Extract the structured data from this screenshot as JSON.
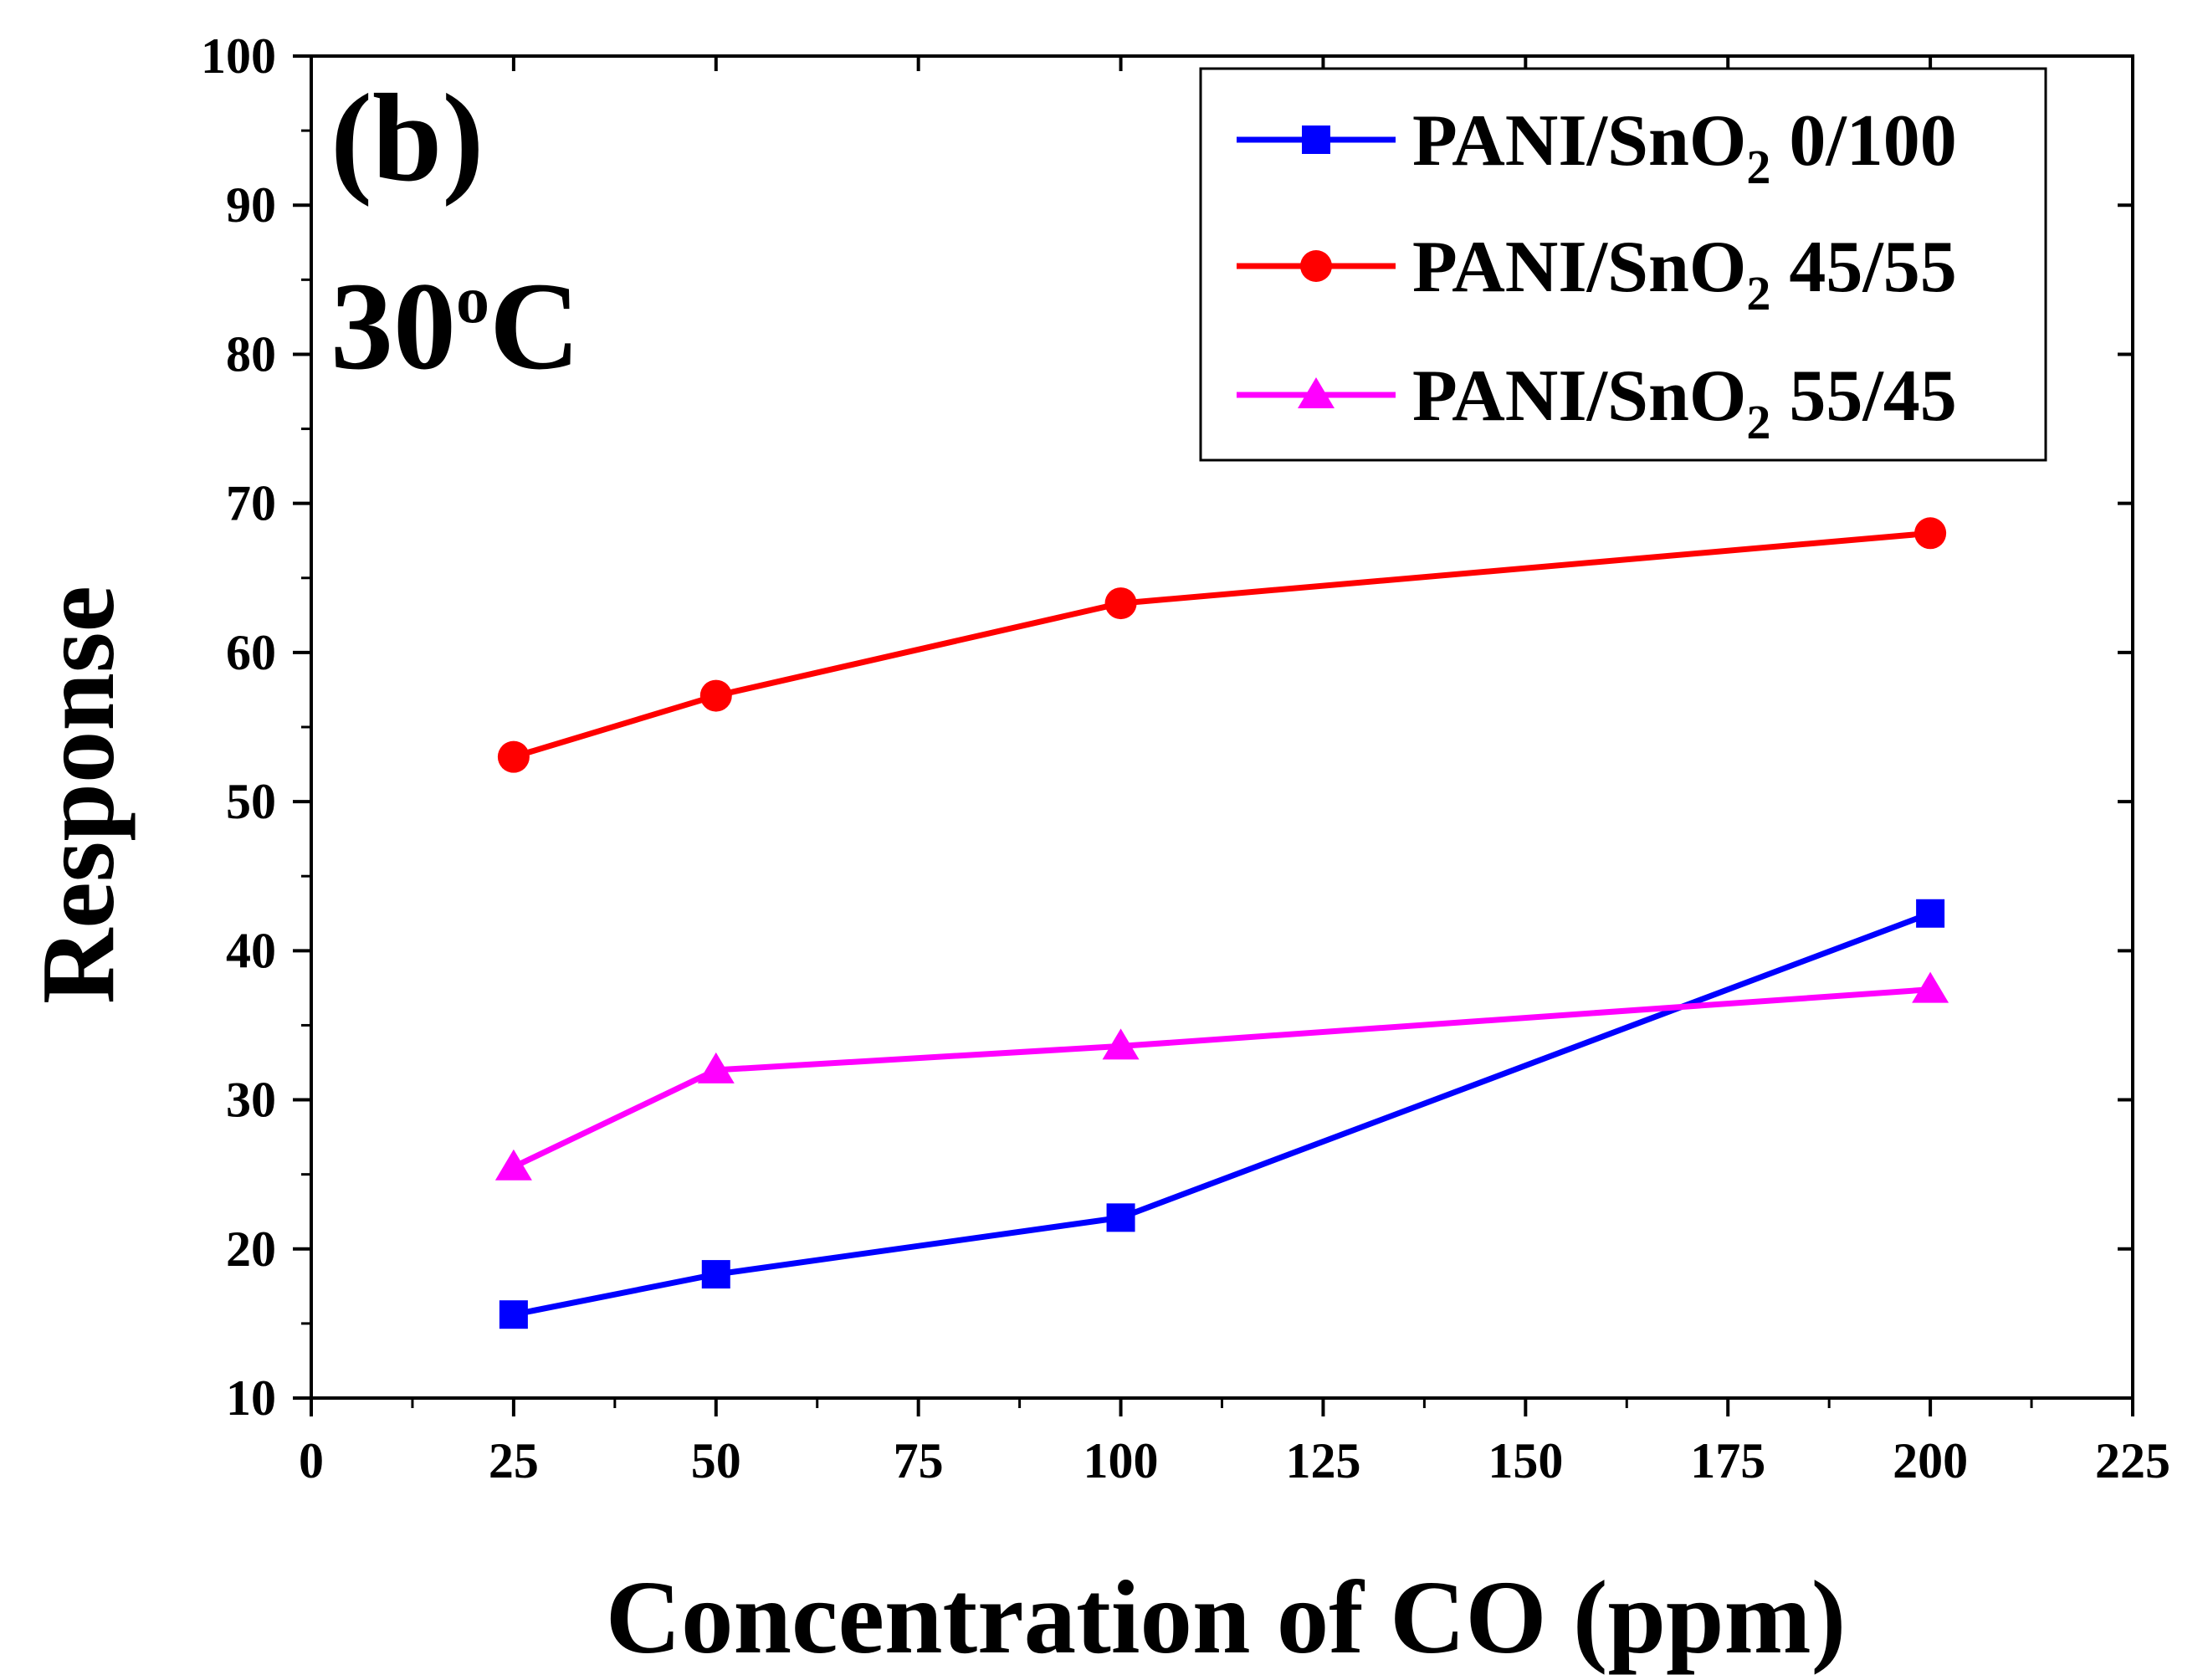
{
  "chart_data": {
    "type": "line",
    "panel_label": "(b)",
    "temperature": {
      "value": "30",
      "sup": "o",
      "unit": "C"
    },
    "xlabel": "Concentration of CO (ppm)",
    "ylabel": "Response",
    "xlim": [
      0,
      225
    ],
    "ylim": [
      10,
      100
    ],
    "xticks": [
      0,
      25,
      50,
      75,
      100,
      125,
      150,
      175,
      200,
      225
    ],
    "yticks": [
      10,
      20,
      30,
      40,
      50,
      60,
      70,
      80,
      90,
      100
    ],
    "grid": false,
    "legend_position": "top-right",
    "x": [
      25,
      50,
      100,
      200
    ],
    "series": [
      {
        "name": "PANI/SnO2 0/100",
        "label_main": "PANI/SnO",
        "label_sub": "2",
        "label_ratio": "0/100",
        "color": "#0000ff",
        "marker": "square",
        "values": [
          15.6,
          18.3,
          22.1,
          42.5
        ]
      },
      {
        "name": "PANI/SnO2 45/55",
        "label_main": "PANI/SnO",
        "label_sub": "2",
        "label_ratio": "45/55",
        "color": "#ff0000",
        "marker": "circle",
        "values": [
          53.0,
          57.1,
          63.3,
          68.0
        ]
      },
      {
        "name": "PANI/SnO2 55/45",
        "label_main": "PANI/SnO",
        "label_sub": "2",
        "label_ratio": "55/45",
        "color": "#ff00ff",
        "marker": "triangle",
        "values": [
          25.5,
          32.0,
          33.6,
          37.4
        ]
      }
    ]
  }
}
